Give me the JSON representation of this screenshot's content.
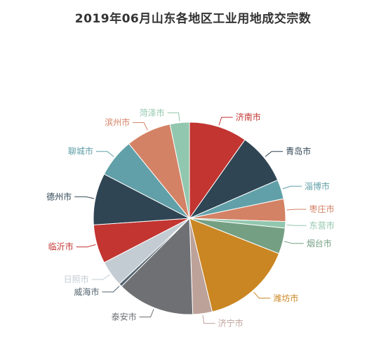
{
  "chart_data": {
    "type": "pie",
    "title": "2019年06月山东各地区工业用地成交宗数",
    "slices": [
      {
        "label": "济南市",
        "value": 9,
        "color": "#c23531"
      },
      {
        "label": "青岛市",
        "value": 8,
        "color": "#2f4554"
      },
      {
        "label": "淄博市",
        "value": 3,
        "color": "#61a0a8"
      },
      {
        "label": "枣庄市",
        "value": 3.5,
        "color": "#d48265"
      },
      {
        "label": "东营市",
        "value": 1,
        "color": "#91c7ae"
      },
      {
        "label": "烟台市",
        "value": 4,
        "color": "#749f83"
      },
      {
        "label": "潍坊市",
        "value": 14,
        "color": "#ca8622"
      },
      {
        "label": "济宁市",
        "value": 3,
        "color": "#bda29a"
      },
      {
        "label": "泰安市",
        "value": 12,
        "color": "#6e7074"
      },
      {
        "label": "威海市",
        "value": 0.5,
        "color": "#546570"
      },
      {
        "label": "日照市",
        "value": 4,
        "color": "#c4ccd3"
      },
      {
        "label": "临沂市",
        "value": 6,
        "color": "#c23531"
      },
      {
        "label": "德州市",
        "value": 8,
        "color": "#2f4554"
      },
      {
        "label": "聊城市",
        "value": 6,
        "color": "#61a0a8"
      },
      {
        "label": "滨州市",
        "value": 7,
        "color": "#d48265"
      },
      {
        "label": "菏泽市",
        "value": 3,
        "color": "#91c7ae"
      }
    ]
  }
}
